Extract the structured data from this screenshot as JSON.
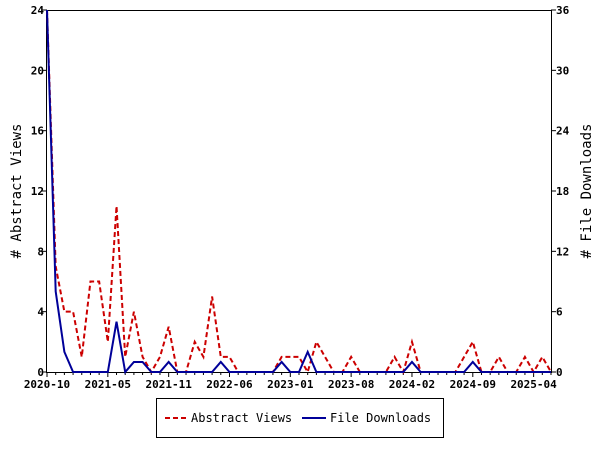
{
  "chart_data": {
    "type": "line",
    "x_tick_labels": [
      "2020-10",
      "2021-05",
      "2021-11",
      "2022-06",
      "2023-01",
      "2023-08",
      "2024-02",
      "2024-09",
      "2025-04"
    ],
    "y_left": {
      "label": "# Abstract Views",
      "ticks": [
        0,
        4,
        8,
        12,
        16,
        20,
        24
      ],
      "range": [
        0,
        24
      ]
    },
    "y_right": {
      "label": "# File Downloads",
      "ticks": [
        0,
        6,
        12,
        18,
        24,
        30,
        36
      ],
      "range": [
        0,
        36
      ]
    },
    "n_points": 59,
    "series": [
      {
        "name": "Abstract Views",
        "axis": "left",
        "color": "#cc0000",
        "dash": "dashed",
        "values": [
          24,
          7,
          4,
          4,
          1,
          6,
          6,
          2,
          11,
          1,
          4,
          1,
          0,
          1,
          3,
          0,
          0,
          2,
          1,
          5,
          1,
          1,
          0,
          0,
          0,
          0,
          0,
          1,
          1,
          1,
          0,
          2,
          1,
          0,
          0,
          1,
          0,
          0,
          0,
          0,
          1,
          0,
          2,
          0,
          0,
          0,
          0,
          0,
          1,
          2,
          0,
          0,
          1,
          0,
          0,
          1,
          0,
          1,
          0
        ]
      },
      {
        "name": "File Downloads",
        "axis": "right",
        "color": "#000099",
        "dash": "solid",
        "values": [
          36,
          8,
          2,
          0,
          0,
          0,
          0,
          0,
          5,
          0,
          1,
          1,
          0,
          0,
          1,
          0,
          0,
          0,
          0,
          0,
          1,
          0,
          0,
          0,
          0,
          0,
          0,
          1,
          0,
          0,
          2,
          0,
          0,
          0,
          0,
          0,
          0,
          0,
          0,
          0,
          0,
          0,
          1,
          0,
          0,
          0,
          0,
          0,
          0,
          1,
          0,
          0,
          0,
          0,
          0,
          0,
          0,
          0,
          0
        ]
      }
    ],
    "legend_position": "bottom-center",
    "grid": false
  }
}
